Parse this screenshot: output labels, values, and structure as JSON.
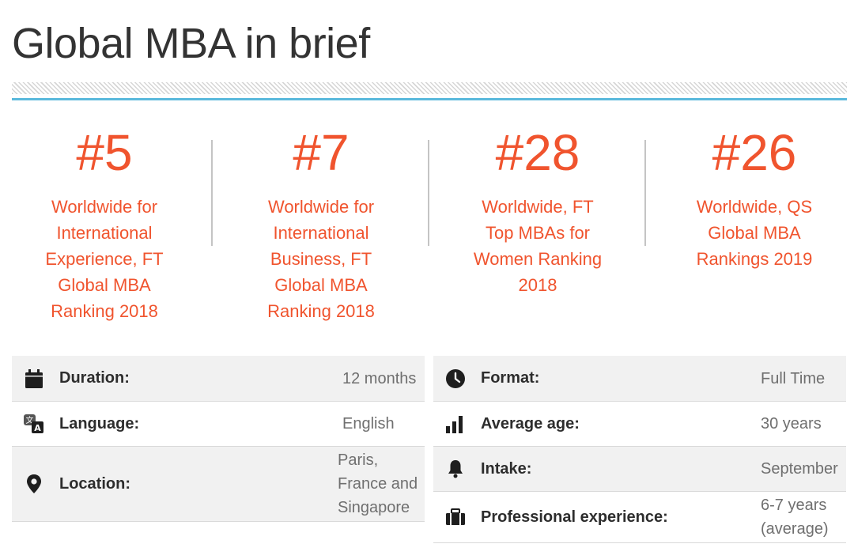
{
  "page": {
    "title": "Global MBA in brief"
  },
  "rankings": [
    {
      "number": "#5",
      "desc": "Worldwide for International Experience, FT Global MBA Ranking 2018"
    },
    {
      "number": "#7",
      "desc": "Worldwide for International Business, FT Global MBA Ranking 2018"
    },
    {
      "number": "#28",
      "desc": "Worldwide, FT Top MBAs for Women Ranking 2018"
    },
    {
      "number": "#26",
      "desc": "Worldwide, QS Global MBA Rankings 2019"
    }
  ],
  "facts_left": [
    {
      "icon": "calendar-icon",
      "label": "Duration:",
      "value": "12 months"
    },
    {
      "icon": "translate-icon",
      "label": "Language:",
      "value": "English"
    },
    {
      "icon": "location-pin-icon",
      "label": "Location:",
      "value": "Paris, France and Singapore"
    }
  ],
  "facts_right": [
    {
      "icon": "clock-icon",
      "label": "Format:",
      "value": "Full Time"
    },
    {
      "icon": "bar-chart-icon",
      "label": "Average age:",
      "value": "30 years"
    },
    {
      "icon": "bell-icon",
      "label": "Intake:",
      "value": "September"
    },
    {
      "icon": "briefcase-icon",
      "label": "Professional experience:",
      "value": "6-7 years (average)"
    }
  ],
  "colors": {
    "accent": "#f0542e",
    "rule": "#5ab9dc",
    "row_shade": "#f1f1f1"
  }
}
